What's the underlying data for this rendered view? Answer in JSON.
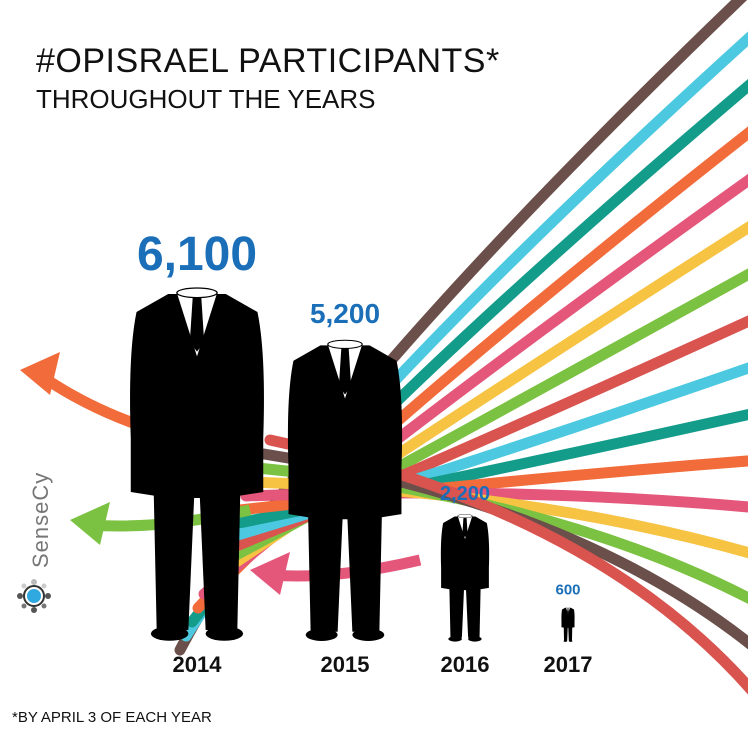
{
  "chart_data": {
    "type": "pictogram",
    "title": "#OPISRAEL PARTICIPANTS*",
    "subtitle": "THROUGHOUT THE YEARS",
    "categories": [
      "2014",
      "2015",
      "2016",
      "2017"
    ],
    "values": [
      6100,
      5200,
      2200,
      600
    ],
    "value_labels": [
      "6,100",
      "5,200",
      "2,200",
      "600"
    ],
    "footnote": "*BY APRIL 3 OF EACH YEAR",
    "brand": "SenseCy",
    "color": "#1a6fb8"
  }
}
